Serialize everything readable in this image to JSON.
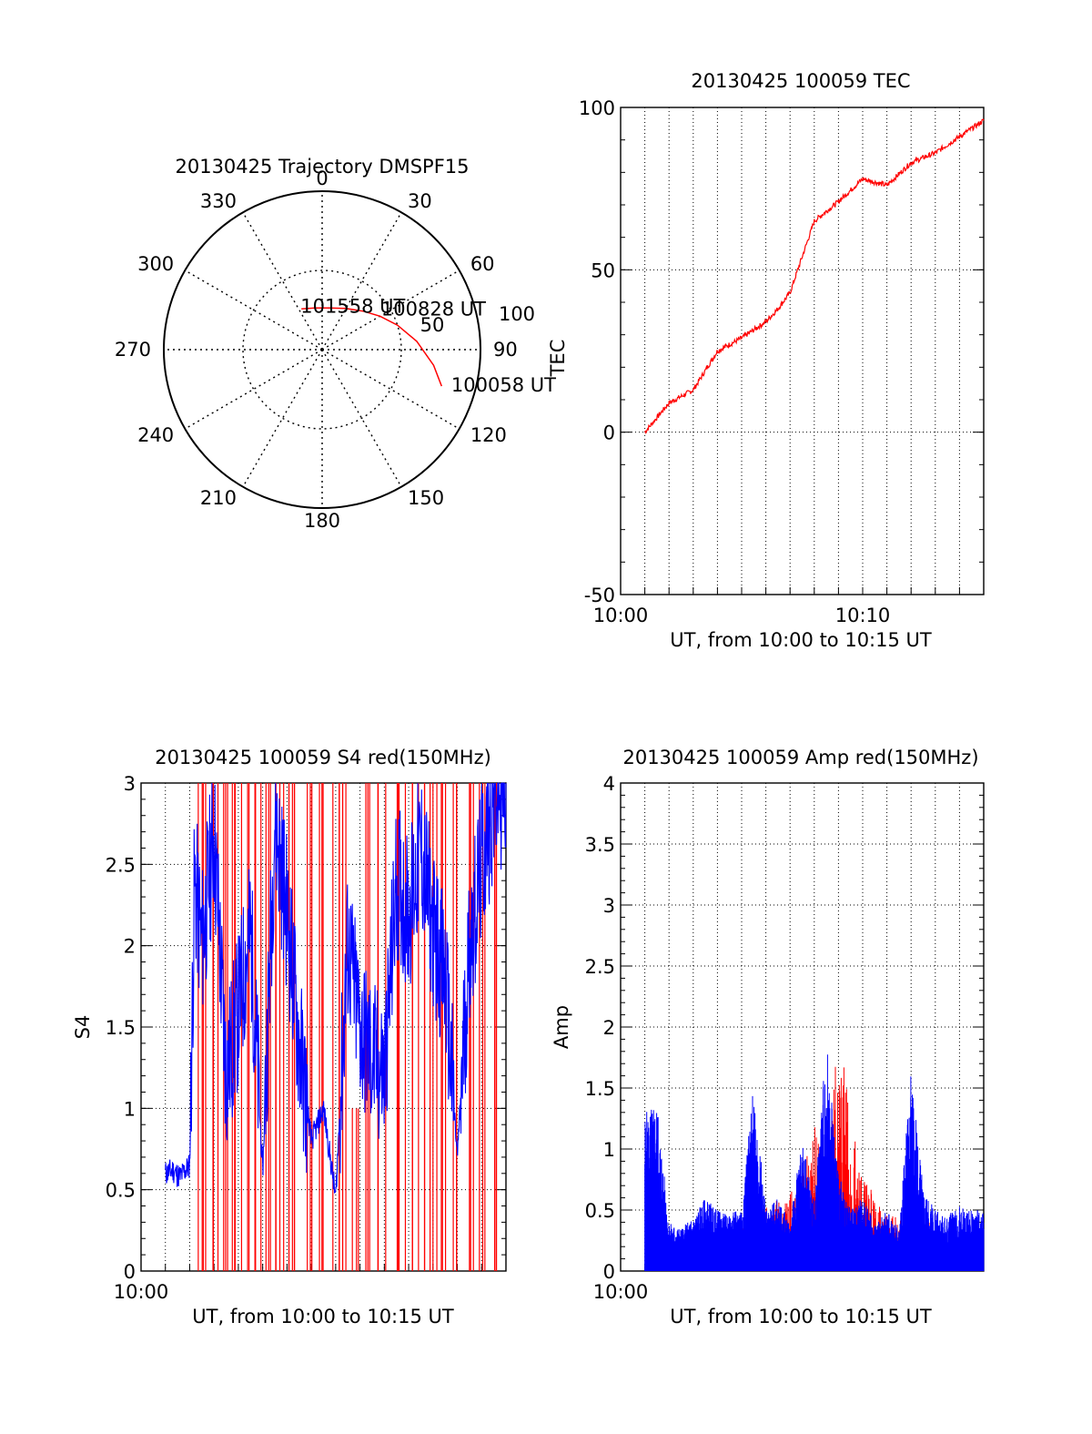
{
  "colors": {
    "red": "#ff0000",
    "blue": "#0000ff",
    "axis": "#000000",
    "grid": "#000000"
  },
  "chart_data": [
    {
      "type": "polar",
      "title": "20130425 Trajectory DMSPF15",
      "angle_labels": [
        "0",
        "30",
        "60",
        "90",
        "120",
        "150",
        "180",
        "210",
        "240",
        "270",
        "300",
        "330"
      ],
      "radial_labels": [
        "50",
        "100"
      ],
      "grid": true,
      "series": [
        {
          "color": "#ff0000",
          "points": [
            {
              "az": 107,
              "el": 19
            },
            {
              "az": 98,
              "el": 26
            },
            {
              "az": 85,
              "el": 36
            },
            {
              "az": 72,
              "el": 45
            },
            {
              "az": 60,
              "el": 52
            },
            {
              "az": 47,
              "el": 58
            },
            {
              "az": 30,
              "el": 63
            },
            {
              "az": 10,
              "el": 66
            },
            {
              "az": -10,
              "el": 66
            },
            {
              "az": -27,
              "el": 64
            }
          ]
        }
      ],
      "annotations": [
        {
          "text": "101558 UT",
          "az": -26,
          "el": 62
        },
        {
          "text": "100828 UT",
          "az": 55,
          "el": 49
        },
        {
          "text": "100058 UT",
          "az": 105,
          "el": 14
        }
      ]
    },
    {
      "type": "line",
      "title": "20130425 100059 TEC",
      "xlabel": "UT, from 10:00 to 10:15 UT",
      "ylabel": "TEC",
      "xlim": [
        "10:00",
        "10:15"
      ],
      "ylim": [
        -50,
        100
      ],
      "x_ticks": [
        "10:00",
        "10:10"
      ],
      "y_ticks": [
        "-50",
        "0",
        "50",
        "100"
      ],
      "grid": true,
      "series": [
        {
          "color": "#ff0000",
          "x": [
            "10:01",
            "10:02",
            "10:03",
            "10:04",
            "10:05",
            "10:06",
            "10:06.5",
            "10:07",
            "10:08",
            "10:09",
            "10:10",
            "10:11",
            "10:12",
            "10:13",
            "10:14",
            "10:15"
          ],
          "y": [
            0,
            9,
            13,
            25,
            29,
            34,
            38,
            43,
            65,
            71,
            78,
            76,
            83,
            86,
            91,
            96
          ]
        }
      ]
    },
    {
      "type": "line",
      "title": "20130425 100059 S4 red(150MHz)",
      "xlabel": "UT, from 10:00 to 10:15 UT",
      "ylabel": "S4",
      "xlim": [
        "10:00",
        "10:15"
      ],
      "ylim": [
        0,
        3
      ],
      "x_ticks": [
        "10:00"
      ],
      "y_ticks": [
        "0",
        "0.5",
        "1",
        "1.5",
        "2",
        "2.5",
        "3"
      ],
      "grid": true,
      "series": [
        {
          "color": "#0000ff",
          "x": [
            1.0,
            1.3,
            1.6,
            2.0,
            2.2,
            2.5,
            3.0,
            3.5,
            4.0,
            4.5,
            5.0,
            5.5,
            6.0,
            6.5,
            7.0,
            7.5,
            8.0,
            8.5,
            9.0,
            9.5,
            10.0,
            10.5,
            11.0,
            11.5,
            12.0,
            12.5,
            13.0,
            13.5,
            14.0,
            14.5,
            15.0
          ],
          "y": [
            0.6,
            0.62,
            0.58,
            0.65,
            2.4,
            2.0,
            2.7,
            1.2,
            1.6,
            2.1,
            0.6,
            2.8,
            2.2,
            1.4,
            0.8,
            1.0,
            0.45,
            2.0,
            1.5,
            1.3,
            1.2,
            2.4,
            2.2,
            2.6,
            2.1,
            1.8,
            0.7,
            2.0,
            2.5,
            2.9,
            3.0
          ]
        },
        {
          "color": "#ff0000",
          "x": [
            2.2,
            2.6,
            3.0,
            3.4,
            3.8,
            4.3,
            4.8,
            5.2,
            5.6,
            6.0,
            6.3,
            7.0,
            7.5,
            8.0,
            8.4,
            8.8,
            9.3,
            9.9,
            10.5,
            11.0,
            11.5,
            12.0,
            12.5,
            13.0,
            13.5,
            14.0,
            14.5
          ],
          "y": [
            3.0,
            0.0,
            3.0,
            3.0,
            0.0,
            3.0,
            0.0,
            3.0,
            3.0,
            0.0,
            3.0,
            3.0,
            0.0,
            3.0,
            3.0,
            1.0,
            3.0,
            0.0,
            3.0,
            0.0,
            3.0,
            0.0,
            3.0,
            0.0,
            3.0,
            0.0,
            3.0
          ]
        }
      ]
    },
    {
      "type": "line",
      "title": "20130425 100059 Amp red(150MHz)",
      "xlabel": "UT, from 10:00 to 10:15 UT",
      "ylabel": "Amp",
      "xlim": [
        "10:00",
        "10:15"
      ],
      "ylim": [
        0,
        4
      ],
      "x_ticks": [
        "10:00"
      ],
      "y_ticks": [
        "0",
        "0.5",
        "1",
        "1.5",
        "2",
        "2.5",
        "3",
        "3.5",
        "4"
      ],
      "grid": true,
      "series": [
        {
          "color": "#0000ff",
          "x": [
            1.0,
            1.5,
            2.0,
            2.5,
            3.0,
            3.5,
            4.0,
            4.5,
            5.0,
            5.5,
            6.0,
            6.5,
            7.0,
            7.5,
            8.0,
            8.5,
            9.0,
            9.5,
            10.0,
            10.5,
            11.0,
            11.5,
            12.0,
            12.5,
            13.0,
            13.5,
            14.0,
            14.5,
            15.0
          ],
          "y": [
            1.3,
            1.4,
            0.4,
            0.35,
            0.45,
            0.6,
            0.5,
            0.45,
            0.55,
            1.55,
            0.5,
            0.6,
            0.4,
            1.1,
            0.55,
            1.95,
            0.8,
            0.5,
            0.6,
            0.4,
            0.5,
            0.35,
            1.65,
            0.7,
            0.5,
            0.45,
            0.55,
            0.5,
            0.5
          ]
        },
        {
          "color": "#ff0000",
          "x": [
            5.0,
            6.5,
            7.3,
            8.0,
            8.6,
            9.0,
            9.4,
            9.8,
            10.2,
            10.8,
            11.4,
            12.3,
            13.0
          ],
          "y": [
            0.5,
            0.6,
            0.7,
            1.2,
            1.0,
            2.05,
            1.5,
            0.9,
            0.75,
            0.5,
            0.45,
            0.35,
            0.5
          ]
        }
      ]
    }
  ]
}
